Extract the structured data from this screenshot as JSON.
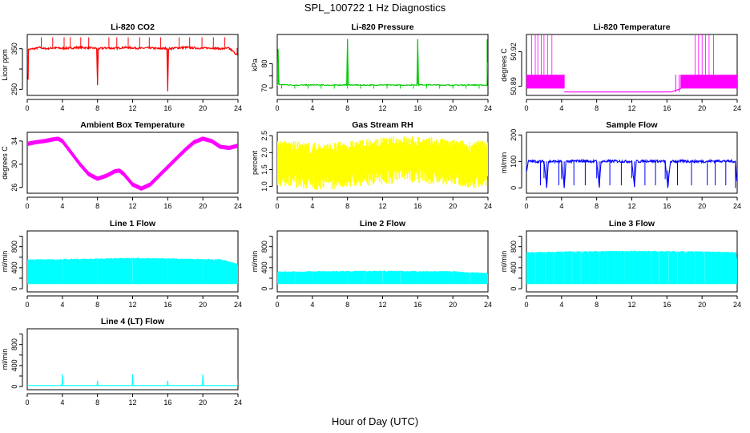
{
  "title": "SPL_100722  1 Hz Diagnostics",
  "x_axis_title": "Hour of Day (UTC)",
  "chart_data": [
    {
      "type": "line",
      "title": "Li-820 CO2",
      "ylabel": "Licor ppm",
      "color": "#ff0000",
      "xlim": [
        0,
        24
      ],
      "ylim": [
        235,
        385
      ],
      "xticks": [
        0,
        4,
        8,
        12,
        16,
        20,
        24
      ],
      "yticks": [
        250,
        300,
        350
      ],
      "ytick_labels": [
        "250",
        "",
        "350"
      ],
      "series": [
        {
          "x": [
            0,
            0.1,
            0.15,
            0.2,
            1,
            1.5,
            2,
            3,
            4,
            5,
            6,
            7,
            7.9,
            8,
            8.1,
            9,
            10,
            11,
            12,
            13,
            14,
            15,
            15.9,
            16,
            16.1,
            17,
            18,
            19,
            20,
            21,
            22,
            23,
            23.9,
            24
          ],
          "y": [
            330,
            275,
            350,
            348,
            351,
            353,
            350,
            352,
            351,
            352,
            353,
            352,
            351,
            260,
            350,
            352,
            351,
            353,
            352,
            351,
            352,
            350,
            351,
            245,
            350,
            352,
            353,
            352,
            351,
            352,
            350,
            351,
            335,
            352
          ]
        }
      ]
    },
    {
      "type": "line",
      "title": "Li-820 Pressure",
      "ylabel": "kPa",
      "color": "#00cc00",
      "xlim": [
        0,
        24
      ],
      "ylim": [
        67,
        92
      ],
      "xticks": [
        0,
        4,
        8,
        12,
        16,
        20,
        24
      ],
      "yticks": [
        70,
        75,
        80
      ],
      "ytick_labels": [
        "70",
        "",
        "80"
      ],
      "series": [
        {
          "x": [
            0,
            0.1,
            0.2,
            2,
            4,
            6,
            7.9,
            8,
            8.1,
            10,
            12,
            14,
            15.9,
            16,
            16.1,
            18,
            20,
            22,
            23.9,
            24
          ],
          "y": [
            71,
            86,
            71.5,
            71.2,
            71.3,
            71.2,
            71.3,
            90,
            71.3,
            71.2,
            71.3,
            71.2,
            71.3,
            90,
            71.4,
            71.3,
            71.2,
            71.3,
            71.2,
            90
          ]
        }
      ]
    },
    {
      "type": "line",
      "title": "Li-820 Temperature",
      "ylabel": "degrees C",
      "color": "#ff00ff",
      "xlim": [
        0,
        24
      ],
      "ylim": [
        50.882,
        50.935
      ],
      "xticks": [
        0,
        4,
        8,
        12,
        16,
        20,
        24
      ],
      "yticks": [
        50.89,
        50.92
      ],
      "ytick_labels": [
        "50.89",
        "50.92"
      ],
      "series": [
        {
          "x": [
            0,
            4.3,
            4.4,
            16.5,
            17.5,
            18,
            20,
            22,
            24
          ],
          "y": [
            50.9,
            50.9,
            50.885,
            50.885,
            50.9,
            50.9,
            50.92,
            50.9,
            50.9
          ]
        }
      ]
    },
    {
      "type": "line",
      "title": "Ambient Box Temperature",
      "ylabel": "degrees C",
      "color": "#ff00ff",
      "xlim": [
        0,
        24
      ],
      "ylim": [
        25,
        35.5
      ],
      "xticks": [
        0,
        4,
        8,
        12,
        16,
        20,
        24
      ],
      "yticks": [
        26,
        30,
        34
      ],
      "ytick_labels": [
        "26",
        "30",
        "34"
      ],
      "series": [
        {
          "x": [
            0,
            1,
            2,
            3,
            3.5,
            4,
            5,
            6,
            7,
            8,
            9,
            10,
            10.5,
            11,
            12,
            13,
            14,
            15,
            16,
            17,
            18,
            19,
            20,
            21,
            22,
            23,
            24
          ],
          "y": [
            33.5,
            33.8,
            34,
            34.3,
            34.4,
            34,
            32,
            30,
            28.3,
            27.5,
            28,
            28.8,
            28.9,
            28.3,
            26.5,
            25.8,
            26.5,
            28,
            29.5,
            31,
            32.5,
            33.8,
            34.4,
            34,
            33,
            32.8,
            33.2
          ]
        }
      ]
    },
    {
      "type": "line",
      "title": "Gas Stream RH",
      "ylabel": "percent",
      "color": "#ffff00",
      "xlim": [
        0,
        24
      ],
      "ylim": [
        0.8,
        2.6
      ],
      "xticks": [
        0,
        4,
        8,
        12,
        16,
        20,
        24
      ],
      "yticks": [
        1.0,
        1.5,
        2.0,
        2.5
      ],
      "ytick_labels": [
        "1.0",
        "1.5",
        "2.0",
        "2.5"
      ],
      "series": [
        {
          "x": [
            0,
            2,
            4,
            6,
            8,
            10,
            12,
            14,
            16,
            18,
            20,
            22,
            24
          ],
          "y": [
            1.8,
            1.75,
            1.7,
            1.7,
            1.75,
            1.8,
            1.85,
            1.9,
            1.9,
            1.85,
            1.8,
            1.75,
            1.8
          ]
        }
      ]
    },
    {
      "type": "line",
      "title": "Sample Flow",
      "ylabel": "ml/min",
      "color": "#0000ff",
      "xlim": [
        0,
        24
      ],
      "ylim": [
        -20,
        210
      ],
      "xticks": [
        0,
        4,
        8,
        12,
        16,
        20,
        24
      ],
      "yticks": [
        0,
        100,
        200
      ],
      "ytick_labels": [
        "0",
        "100",
        "200"
      ],
      "series": [
        {
          "x": [
            0,
            0.2,
            2,
            2.3,
            2.5,
            4,
            4.3,
            4.5,
            6,
            8,
            8.3,
            8.5,
            10,
            12,
            12.3,
            12.5,
            14,
            15.8,
            16.1,
            16.4,
            18,
            20,
            22,
            23.8,
            24
          ],
          "y": [
            60,
            100,
            100,
            5,
            100,
            100,
            0,
            100,
            102,
            100,
            5,
            100,
            101,
            100,
            5,
            100,
            102,
            100,
            0,
            100,
            101,
            100,
            102,
            100,
            0
          ]
        }
      ]
    },
    {
      "type": "area",
      "title": "Line 1 Flow",
      "ylabel": "ml/min",
      "color": "#00ffff",
      "xlim": [
        0,
        24
      ],
      "ylim": [
        -60,
        1100
      ],
      "xticks": [
        0,
        4,
        8,
        12,
        16,
        20,
        24
      ],
      "yticks": [
        0,
        200,
        400,
        600,
        800,
        1000
      ],
      "ytick_labels": [
        "0",
        "",
        "400",
        "",
        "800",
        ""
      ],
      "baseline": 100,
      "gaps": [
        4,
        8,
        12,
        16,
        20
      ],
      "series": [
        {
          "x": [
            0,
            2,
            4,
            6,
            8,
            10,
            12,
            14,
            16,
            18,
            20,
            22,
            24
          ],
          "y": [
            560,
            565,
            570,
            575,
            580,
            585,
            590,
            585,
            580,
            575,
            570,
            565,
            480
          ]
        }
      ]
    },
    {
      "type": "area",
      "title": "Line 2 Flow",
      "ylabel": "ml/min",
      "color": "#00ffff",
      "xlim": [
        0,
        24
      ],
      "ylim": [
        -60,
        1100
      ],
      "xticks": [
        0,
        4,
        8,
        12,
        16,
        20,
        24
      ],
      "yticks": [
        0,
        200,
        400,
        600,
        800,
        1000
      ],
      "ytick_labels": [
        "0",
        "",
        "400",
        "",
        "800",
        ""
      ],
      "baseline": 100,
      "gaps": [
        2,
        4,
        6,
        8,
        10,
        12,
        14,
        16,
        18,
        20,
        22
      ],
      "series": [
        {
          "x": [
            0,
            4,
            8,
            12,
            16,
            20,
            24
          ],
          "y": [
            330,
            335,
            340,
            345,
            340,
            335,
            300
          ]
        }
      ]
    },
    {
      "type": "area",
      "title": "Line 3 Flow",
      "ylabel": "ml/min",
      "color": "#00ffff",
      "xlim": [
        0,
        24
      ],
      "ylim": [
        -60,
        1100
      ],
      "xticks": [
        0,
        4,
        8,
        12,
        16,
        20,
        24
      ],
      "yticks": [
        0,
        200,
        400,
        600,
        800,
        1000
      ],
      "ytick_labels": [
        "0",
        "",
        "400",
        "",
        "800",
        ""
      ],
      "baseline": 100,
      "gaps": [
        1,
        2.2,
        3.1,
        4.3,
        5.2,
        6.2,
        7.1,
        8.3,
        9.2,
        10.1,
        11.2,
        12.2,
        13.3,
        14.2,
        15.1,
        16.2,
        17.2,
        18.1,
        19.2,
        20.3,
        21.1,
        22.2,
        23.2
      ],
      "series": [
        {
          "x": [
            0,
            4,
            8,
            12,
            16,
            20,
            23.8,
            24
          ],
          "y": [
            700,
            710,
            720,
            725,
            720,
            715,
            700,
            560
          ]
        }
      ]
    },
    {
      "type": "line",
      "title": "Line 4 (LT) Flow",
      "ylabel": "ml/min",
      "color": "#00ffff",
      "xlim": [
        0,
        24
      ],
      "ylim": [
        -60,
        1100
      ],
      "xticks": [
        0,
        4,
        8,
        12,
        16,
        20,
        24
      ],
      "yticks": [
        0,
        200,
        400,
        600,
        800,
        1000
      ],
      "ytick_labels": [
        "0",
        "",
        "400",
        "",
        "800",
        ""
      ],
      "series": [
        {
          "x": [
            0,
            3.95,
            4,
            4.05,
            7.95,
            8,
            8.05,
            11.95,
            12,
            12.05,
            15.95,
            16,
            16.05,
            19.95,
            20,
            20.05,
            23.95,
            24
          ],
          "y": [
            20,
            20,
            230,
            20,
            20,
            110,
            20,
            20,
            230,
            20,
            20,
            110,
            20,
            20,
            230,
            20,
            20,
            130
          ]
        }
      ]
    }
  ]
}
